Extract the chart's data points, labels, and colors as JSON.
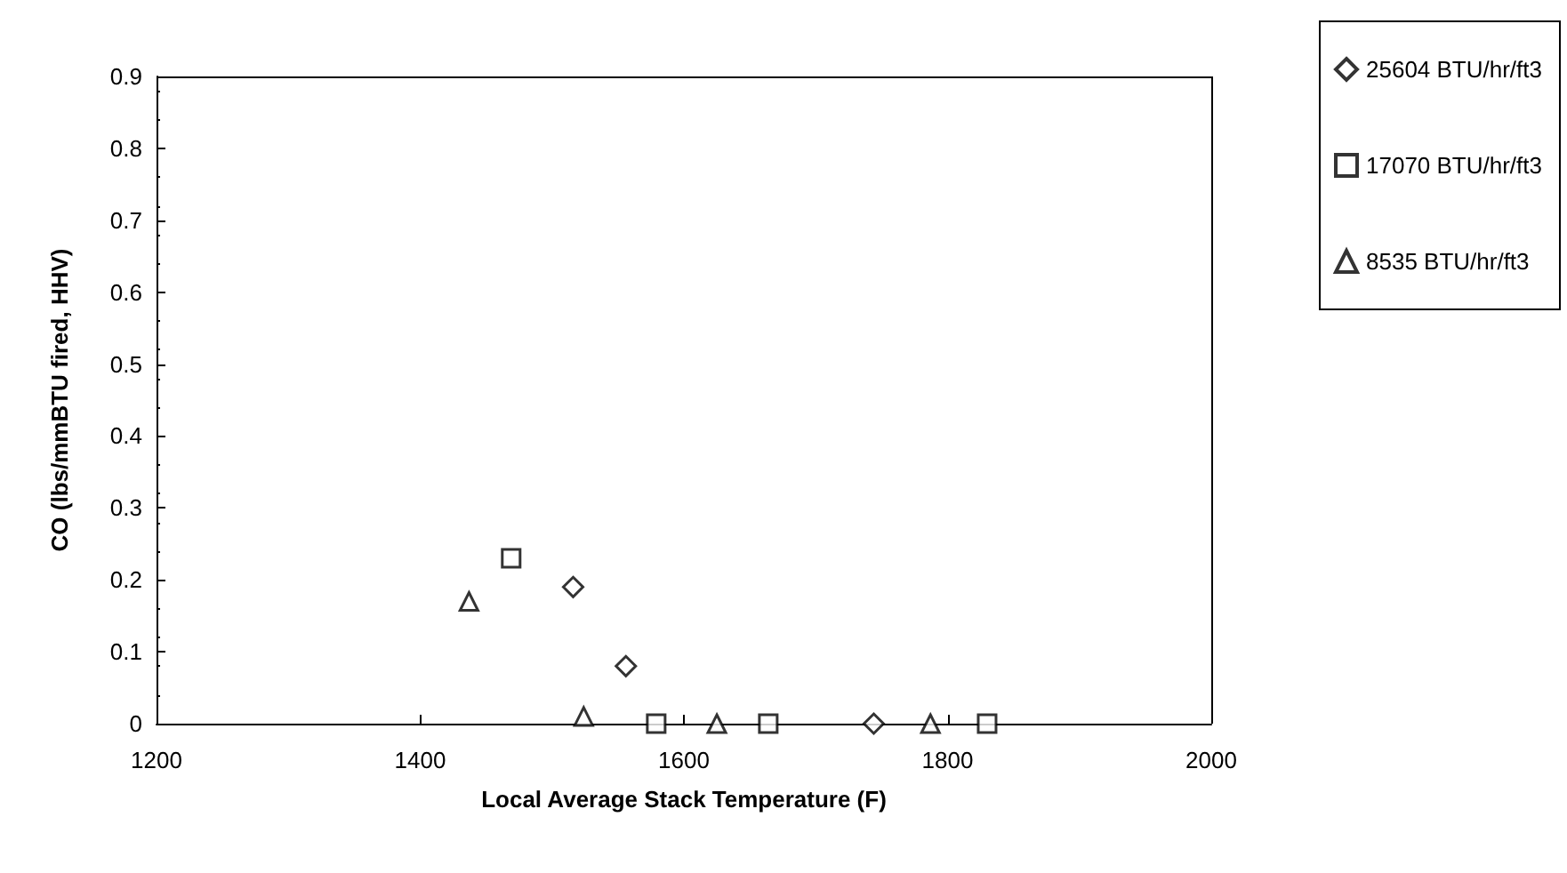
{
  "chart_data": {
    "type": "scatter",
    "xlabel": "Local Average Stack Temperature (F)",
    "ylabel": "CO (lbs/mmBTU fired, HHV)",
    "xlim": [
      1200,
      2000
    ],
    "xticks": [
      1200,
      1400,
      1600,
      1800,
      2000
    ],
    "ylim": [
      0,
      0.9
    ],
    "yticks": [
      0,
      0.1,
      0.2,
      0.3,
      0.4,
      0.5,
      0.6,
      0.7,
      0.8,
      0.9
    ],
    "grid": false,
    "legend": "right",
    "series": [
      {
        "name": "25604 BTU/hr/ft3",
        "color": "#000000",
        "marker": "diamond",
        "x": [
          1516,
          1556,
          1744
        ],
        "values": [
          0.19,
          0.08,
          0
        ]
      },
      {
        "name": "17070 BTU/hr/ft3",
        "color": "#000000",
        "marker": "square",
        "x": [
          1469,
          1579,
          1664,
          1830
        ],
        "values": [
          0.23,
          0,
          0,
          0
        ]
      },
      {
        "name": "8535 BTU/hr/ft3",
        "color": "#000000",
        "marker": "triangle",
        "x": [
          1437,
          1524,
          1625,
          1787
        ],
        "values": [
          0.17,
          0.01,
          0,
          0
        ]
      }
    ]
  }
}
